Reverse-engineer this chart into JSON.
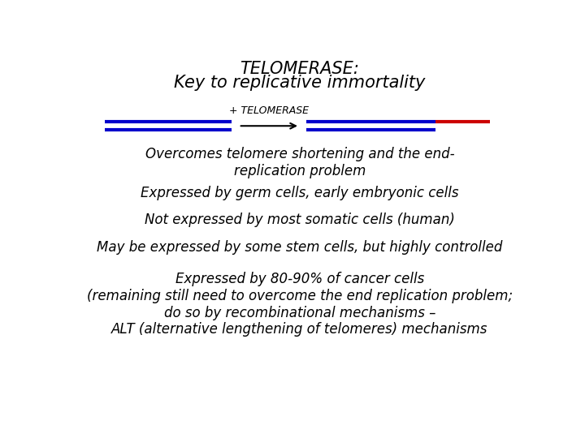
{
  "title_line1": "TELOMERASE:",
  "title_line2": "Key to replicative immortality",
  "telomerase_label": "+ TELOMERASE",
  "bullet1": "Overcomes telomere shortening and the end-\nreplication problem",
  "bullet2": "Expressed by germ cells, early embryonic cells",
  "bullet3": "Not expressed by most somatic cells (human)",
  "bullet4": "May be expressed by some stem cells, but highly controlled",
  "bullet5": "Expressed by 80-90% of cancer cells\n(remaining still need to overcome the end replication problem;\ndo so by recombinational mechanisms –\nALT (alternative lengthening of telomeres) mechanisms",
  "bg_color": "#ffffff",
  "text_color": "#000000",
  "blue_color": "#0000cc",
  "red_color": "#cc0000",
  "arrow_color": "#000000",
  "title_fontsize": 15,
  "body_fontsize": 12,
  "label_fontsize": 9
}
